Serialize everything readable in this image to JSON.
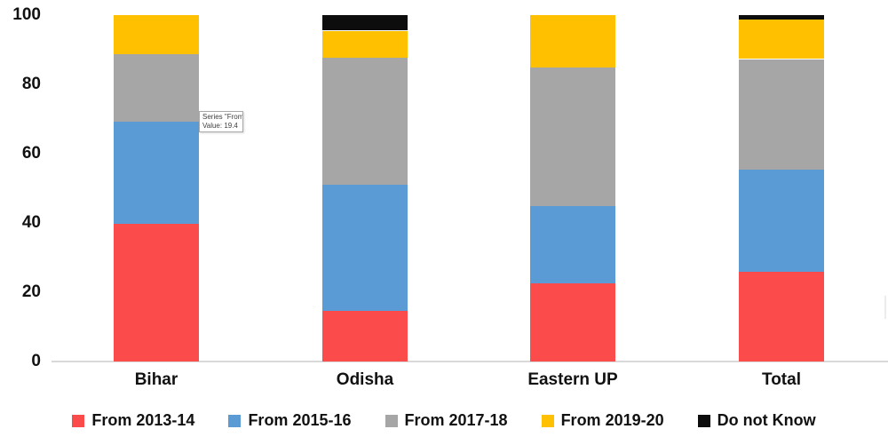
{
  "chart_data": {
    "type": "bar",
    "stacked": true,
    "title": "",
    "xlabel": "",
    "ylabel": "",
    "ylim": [
      0,
      100
    ],
    "yticks": [
      0,
      20,
      40,
      60,
      80,
      100
    ],
    "grid": false,
    "legend_position": "bottom",
    "categories": [
      "Bihar",
      "Odisha",
      "Eastern UP",
      "Total"
    ],
    "series": [
      {
        "name": "From 2013-14",
        "color": "#fb4b4b",
        "values": [
          39.7,
          14.6,
          22.5,
          25.9
        ]
      },
      {
        "name": "From 2015-16",
        "color": "#5b9bd5",
        "values": [
          29.6,
          36.3,
          22.3,
          29.6
        ]
      },
      {
        "name": "From 2017-18",
        "color": "#a6a6a6",
        "values": [
          19.4,
          36.9,
          40.1,
          31.9
        ]
      },
      {
        "name": "From 2019-20",
        "color": "#ffc000",
        "values": [
          11.3,
          7.8,
          15.1,
          11.3
        ]
      },
      {
        "name": "Do not Know",
        "color": "#0d0d0d",
        "values": [
          0,
          4.4,
          0,
          1.3
        ]
      }
    ]
  },
  "tooltip": {
    "line1": "Series \"From",
    "line2": "Value: 19.4"
  },
  "colors": {
    "axis_line": "#d9d9d9",
    "text": "#111111",
    "tooltip_border": "#a9a9a9",
    "tooltip_text": "#404040"
  }
}
